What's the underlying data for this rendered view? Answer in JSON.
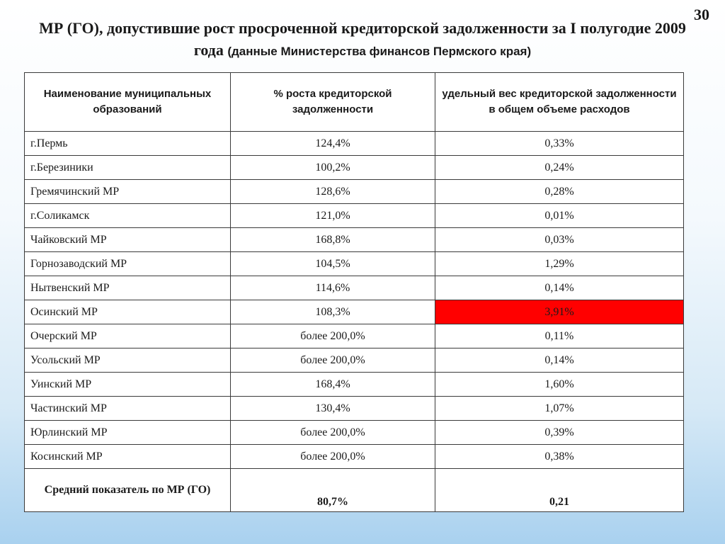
{
  "page_number": "30",
  "title": {
    "main": "МР (ГО), допустившие рост просроченной кредиторской задолженности за I полугодие 2009 года",
    "source": "(данные Министерства финансов Пермского края)"
  },
  "table": {
    "headers": [
      "Наименование муниципальных образований",
      "% роста кредиторской задолженности",
      "удельный вес кредиторской задолженности в общем объеме расходов"
    ],
    "rows": [
      {
        "name": "г.Пермь",
        "growth": "124,4%",
        "share": "0,33%"
      },
      {
        "name": "г.Березиники",
        "growth": "100,2%",
        "share": "0,24%"
      },
      {
        "name": "Гремячинский МР",
        "growth": "128,6%",
        "share": "0,28%"
      },
      {
        "name": "г.Соликамск",
        "growth": "121,0%",
        "share": "0,01%"
      },
      {
        "name": "Чайковский МР",
        "growth": "168,8%",
        "share": "0,03%"
      },
      {
        "name": "Горнозаводский МР",
        "growth": "104,5%",
        "share": "1,29%"
      },
      {
        "name": "Нытвенский МР",
        "growth": "114,6%",
        "share": "0,14%"
      },
      {
        "name": "Осинский МР",
        "growth": "108,3%",
        "share": "3,91%"
      },
      {
        "name": "Очерский МР",
        "growth": "более 200,0%",
        "share": "0,11%"
      },
      {
        "name": "Усольский МР",
        "growth": "более 200,0%",
        "share": "0,14%"
      },
      {
        "name": "Уинский МР",
        "growth": "168,4%",
        "share": "1,60%"
      },
      {
        "name": "Частинский МР",
        "growth": "130,4%",
        "share": "1,07%"
      },
      {
        "name": "Юрлинский МР",
        "growth": "более 200,0%",
        "share": "0,39%"
      },
      {
        "name": "Косинский МР",
        "growth": "более 200,0%",
        "share": "0,38%"
      }
    ],
    "average": {
      "name": "Средний показатель по МР (ГО)",
      "growth": "80,7%",
      "share": "0,21"
    }
  },
  "colors": {
    "highlight": "#ff0000",
    "background_bottom": "#a9d1ef"
  }
}
